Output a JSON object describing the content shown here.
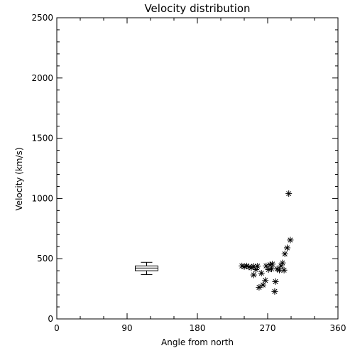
{
  "chart_data": {
    "type": "scatter",
    "title": "Velocity distribution",
    "xlabel": "Angle from north",
    "ylabel": "Velocity (km/s)",
    "xlim": [
      0,
      360
    ],
    "ylim": [
      0,
      2500
    ],
    "xticks": [
      0,
      90,
      180,
      270,
      360
    ],
    "yticks": [
      0,
      500,
      1000,
      1500,
      2000,
      2500
    ],
    "grid": false,
    "marker": "asterisk",
    "series": [
      {
        "points": [
          {
            "x": 237,
            "y": 440
          },
          {
            "x": 240,
            "y": 435
          },
          {
            "x": 243,
            "y": 440
          },
          {
            "x": 246,
            "y": 432
          },
          {
            "x": 249,
            "y": 425
          },
          {
            "x": 252,
            "y": 437
          },
          {
            "x": 252,
            "y": 365
          },
          {
            "x": 255,
            "y": 410
          },
          {
            "x": 257,
            "y": 438
          },
          {
            "x": 259,
            "y": 262
          },
          {
            "x": 262,
            "y": 380
          },
          {
            "x": 264,
            "y": 282
          },
          {
            "x": 267,
            "y": 320
          },
          {
            "x": 268,
            "y": 440
          },
          {
            "x": 271,
            "y": 410
          },
          {
            "x": 273,
            "y": 450
          },
          {
            "x": 275,
            "y": 415
          },
          {
            "x": 276,
            "y": 455
          },
          {
            "x": 279,
            "y": 228
          },
          {
            "x": 280,
            "y": 310
          },
          {
            "x": 282,
            "y": 415
          },
          {
            "x": 285,
            "y": 405
          },
          {
            "x": 287,
            "y": 440
          },
          {
            "x": 289,
            "y": 465
          },
          {
            "x": 291,
            "y": 405
          },
          {
            "x": 292,
            "y": 540
          },
          {
            "x": 295,
            "y": 590
          },
          {
            "x": 297,
            "y": 1040
          },
          {
            "x": 299,
            "y": 655
          }
        ]
      }
    ],
    "boxplot": {
      "x": 115,
      "whisker_low": 368,
      "q1": 400,
      "median": 422,
      "q3": 440,
      "whisker_high": 470
    }
  }
}
